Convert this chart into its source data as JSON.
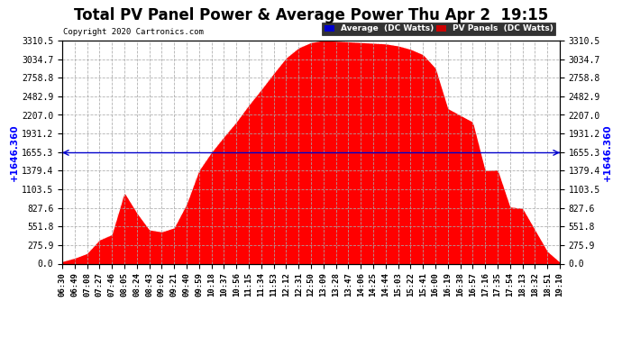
{
  "title": "Total PV Panel Power & Average Power Thu Apr 2  19:15",
  "copyright": "Copyright 2020 Cartronics.com",
  "avg_value": 1646.36,
  "y_max": 3310.5,
  "y_min": 0.0,
  "y_ticks": [
    0.0,
    275.9,
    551.8,
    827.6,
    1103.5,
    1379.4,
    1655.3,
    1931.2,
    2207.0,
    2482.9,
    2758.8,
    3034.7,
    3310.5
  ],
  "y_label": "1646.360",
  "x_labels": [
    "06:30",
    "06:49",
    "07:08",
    "07:27",
    "07:46",
    "08:05",
    "08:24",
    "08:43",
    "09:02",
    "09:21",
    "09:40",
    "09:59",
    "10:18",
    "10:37",
    "10:56",
    "11:15",
    "11:34",
    "11:53",
    "12:12",
    "12:31",
    "12:50",
    "13:09",
    "13:28",
    "13:47",
    "14:06",
    "14:25",
    "14:44",
    "15:03",
    "15:22",
    "15:41",
    "16:00",
    "16:19",
    "16:38",
    "16:57",
    "17:16",
    "17:35",
    "17:54",
    "18:13",
    "18:32",
    "18:51",
    "19:10"
  ],
  "color_fill": "#ff0000",
  "color_avg_line": "#0000cc",
  "color_bg": "#ffffff",
  "color_grid": "#aaaaaa",
  "color_legend_avg_bg": "#0000cc",
  "color_legend_pv_bg": "#cc0000",
  "title_fontsize": 12,
  "tick_fontsize": 7,
  "label_fontsize": 7.5,
  "pv_curve": [
    30,
    80,
    150,
    350,
    430,
    1050,
    750,
    500,
    470,
    530,
    880,
    1380,
    1650,
    1880,
    2100,
    2350,
    2580,
    2820,
    3050,
    3200,
    3280,
    3310,
    3300,
    3290,
    3280,
    3270,
    3260,
    3230,
    3180,
    3100,
    2900,
    2300,
    2200,
    2100,
    1380,
    1390,
    840,
    820,
    500,
    180,
    20
  ]
}
